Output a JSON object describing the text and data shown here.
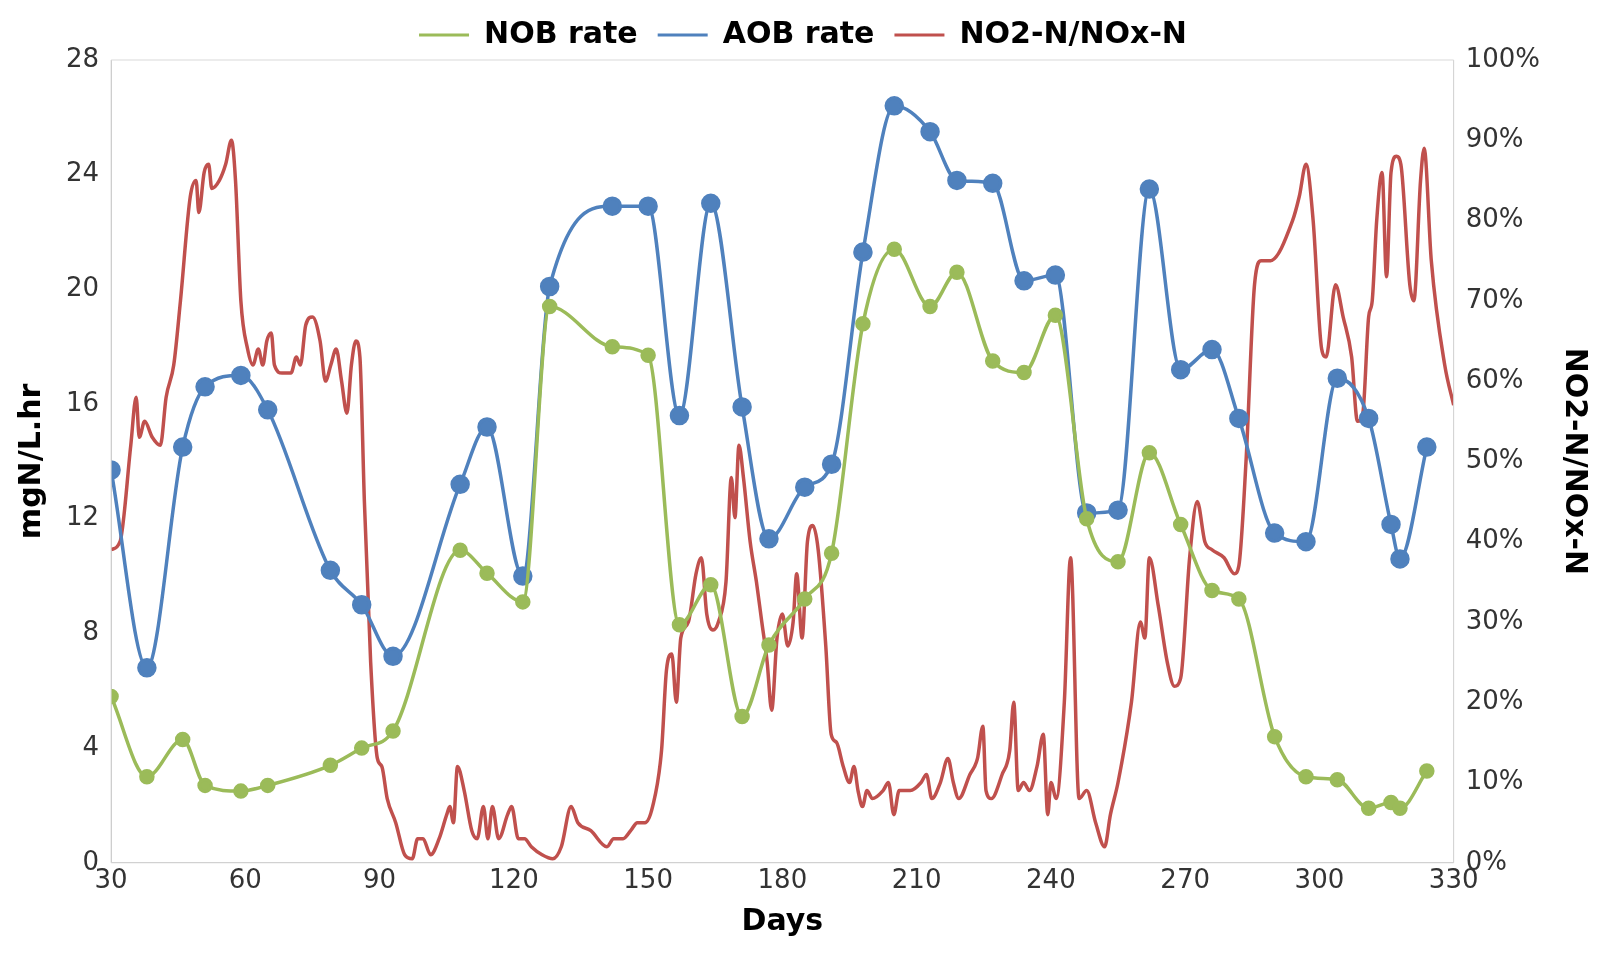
{
  "chart_data": {
    "type": "line",
    "xlabel": "Days",
    "ylabel": "mgN/L.hr",
    "y2label": "NO2-N/NOx-N",
    "legend": "top",
    "xlim": [
      30,
      330
    ],
    "xticks": [
      30,
      60,
      90,
      120,
      150,
      180,
      210,
      240,
      270,
      300,
      330
    ],
    "ylim": [
      0,
      28
    ],
    "yticks": [
      0,
      4,
      8,
      12,
      16,
      20,
      24,
      28
    ],
    "y2lim": [
      0,
      100
    ],
    "y2ticks": [
      {
        "value": 0,
        "label": "0%"
      },
      {
        "value": 10,
        "label": "10%"
      },
      {
        "value": 20,
        "label": "20%"
      },
      {
        "value": 30,
        "label": "30%"
      },
      {
        "value": 40,
        "label": "40%"
      },
      {
        "value": 50,
        "label": "50%"
      },
      {
        "value": 60,
        "label": "60%"
      },
      {
        "value": 70,
        "label": "70%"
      },
      {
        "value": 80,
        "label": "80%"
      },
      {
        "value": 90,
        "label": "90%"
      },
      {
        "value": 100,
        "label": "100%"
      }
    ],
    "series": [
      {
        "name": "NOB rate",
        "color": "#9bbb59",
        "marker": "circle",
        "x": [
          30,
          38,
          46,
          51,
          59,
          65,
          79,
          86,
          93,
          108,
          114,
          122,
          128,
          142,
          150,
          157,
          164,
          171,
          177,
          185,
          191,
          198,
          205,
          213,
          219,
          227,
          234,
          241,
          248,
          255,
          262,
          269,
          276,
          282,
          290,
          297,
          304,
          311,
          316,
          318,
          324
        ],
        "values": [
          5.8,
          3.0,
          4.3,
          2.7,
          2.5,
          2.7,
          3.4,
          4.0,
          4.6,
          10.9,
          10.1,
          9.1,
          19.4,
          18.0,
          17.7,
          8.3,
          9.7,
          5.1,
          7.6,
          9.2,
          10.8,
          18.8,
          21.4,
          19.4,
          20.6,
          17.5,
          17.1,
          19.1,
          12.0,
          10.5,
          14.3,
          11.8,
          9.5,
          9.2,
          4.4,
          3.0,
          2.9,
          1.9,
          2.1,
          1.9,
          3.2
        ]
      },
      {
        "name": "AOB rate",
        "color": "#4f81bd",
        "marker": "circle",
        "x": [
          30,
          38,
          46,
          51,
          59,
          65,
          79,
          86,
          93,
          108,
          114,
          122,
          128,
          142,
          150,
          157,
          164,
          171,
          177,
          185,
          191,
          198,
          205,
          213,
          219,
          227,
          234,
          241,
          248,
          255,
          262,
          269,
          276,
          282,
          290,
          297,
          304,
          311,
          316,
          318,
          324
        ],
        "values": [
          13.7,
          6.8,
          14.5,
          16.6,
          17.0,
          15.8,
          10.2,
          9.0,
          7.2,
          13.2,
          15.2,
          10.0,
          20.1,
          22.9,
          22.9,
          15.6,
          23.0,
          15.9,
          11.3,
          13.1,
          13.9,
          21.3,
          26.4,
          25.5,
          23.8,
          23.7,
          20.3,
          20.5,
          12.2,
          12.3,
          23.5,
          17.2,
          17.9,
          15.5,
          11.5,
          11.2,
          16.9,
          15.5,
          11.8,
          10.6,
          14.5
        ]
      },
      {
        "name": "NO2-N/NOx-N",
        "color": "#c0504d",
        "marker": "none",
        "axis": "y2",
        "x": [
          30,
          32,
          34.4,
          35.6,
          36.3,
          37.5,
          39.2,
          41,
          42.3,
          44,
          45.5,
          47.7,
          49,
          49.6,
          50.8,
          51.8,
          52.5,
          54.2,
          55.6,
          56.9,
          57.8,
          59,
          60.5,
          61.7,
          62.9,
          63.9,
          64.8,
          65.8,
          66.5,
          68.2,
          70.2,
          71.4,
          72.3,
          73.5,
          75,
          76.7,
          77.9,
          79.1,
          80.3,
          81.5,
          82.7,
          83.7,
          84.7,
          85.6,
          86.6,
          88,
          89.5,
          90.5,
          91.7,
          93.6,
          95.6,
          97.3,
          98.5,
          99.7,
          101.4,
          103.3,
          105,
          105.7,
          106.5,
          107.4,
          108.9,
          110.6,
          111.8,
          113.2,
          114.2,
          115.2,
          116.6,
          118.6,
          119.5,
          121,
          122.4,
          123.9,
          126.3,
          128.7,
          130.6,
          132.8,
          134.3,
          137.2,
          140.8,
          142.3,
          144.4,
          146.1,
          147.6,
          149.3,
          151,
          153,
          154.1,
          155.3,
          156.3,
          157.3,
          159,
          160.7,
          161.9,
          163.1,
          164.5,
          165.7,
          167.4,
          168.6,
          169.4,
          170.3,
          171.3,
          172.8,
          174.2,
          175.4,
          176.6,
          177.6,
          178.8,
          180,
          181.2,
          182.4,
          183.2,
          184.4,
          185.6,
          186.8,
          188,
          189.7,
          190.9,
          192.1,
          193.6,
          195,
          196,
          196.9,
          197.9,
          198.9,
          200.1,
          202.5,
          203.7,
          204.9,
          206.1,
          208.6,
          211,
          212.2,
          213.4,
          215.3,
          217,
          218.2,
          219.4,
          221.9,
          223.6,
          224.8,
          225.5,
          226.7,
          229.1,
          230.8,
          231.7,
          232.7,
          233.9,
          235.2,
          236.9,
          238.3,
          239.3,
          240,
          241.2,
          243,
          244.4,
          246.3,
          248,
          250,
          252,
          253.3,
          255,
          258,
          260,
          261,
          262,
          264,
          266,
          267.6,
          269,
          271,
          272.7,
          274.4,
          276,
          278.7,
          281,
          282,
          283.6,
          285.5,
          287,
          289,
          294,
          295.5,
          297,
          298.6,
          300.5,
          301.5,
          303.6,
          305.3,
          307.2,
          308.5,
          309.7,
          311,
          311.8,
          312.8,
          314,
          315,
          316,
          317.2,
          318.2,
          320.2,
          321.1,
          322.6,
          323.4,
          325,
          328,
          330
        ],
        "values": [
          39,
          40,
          52,
          58,
          53,
          55,
          53,
          52,
          58,
          62,
          70,
          83,
          85,
          81,
          86,
          87,
          84,
          85,
          87,
          90,
          85,
          70,
          64,
          62,
          64,
          62,
          65,
          66,
          62,
          61,
          61,
          63,
          62,
          67,
          68,
          65,
          60,
          62,
          64,
          60,
          56,
          62,
          65,
          63,
          45,
          25,
          13,
          12,
          8,
          5,
          1,
          0.5,
          3,
          3,
          1,
          3,
          6,
          7,
          5,
          12,
          9,
          4,
          3,
          7,
          3,
          7,
          3,
          6,
          7,
          3,
          3,
          2,
          1,
          0.5,
          2,
          7,
          5,
          4,
          2,
          3,
          3,
          4,
          5,
          5,
          7,
          14,
          24,
          26,
          20,
          28,
          30,
          36,
          38,
          31,
          29,
          30,
          35,
          48,
          43,
          52,
          48,
          40,
          35,
          30,
          25,
          19,
          28,
          31,
          27,
          30,
          36,
          28,
          40,
          42,
          39,
          27,
          16,
          15,
          12,
          10,
          12,
          9,
          7,
          9,
          8,
          9,
          10,
          6,
          9,
          9,
          10,
          11,
          8,
          10,
          13,
          10,
          8,
          11,
          13,
          17,
          9,
          8,
          11,
          14,
          20,
          9,
          10,
          9,
          12,
          16,
          6,
          10,
          8,
          20,
          38,
          8,
          9,
          5,
          2,
          6,
          10,
          20,
          30,
          28,
          38,
          32,
          25,
          22,
          23,
          38,
          45,
          40,
          39,
          38,
          36,
          37,
          50,
          72,
          75,
          75,
          80,
          83,
          87,
          80,
          64,
          63,
          72,
          68,
          63,
          55,
          56,
          68,
          70,
          80,
          86,
          73,
          86,
          88,
          87,
          72,
          70,
          85,
          89,
          75,
          62,
          57
        ]
      }
    ]
  }
}
